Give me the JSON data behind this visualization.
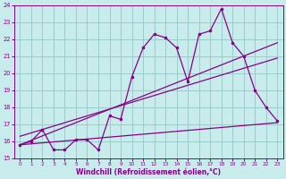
{
  "xlabel": "Windchill (Refroidissement éolien,°C)",
  "xlim": [
    -0.5,
    23.5
  ],
  "ylim": [
    15,
    24
  ],
  "yticks": [
    15,
    16,
    17,
    18,
    19,
    20,
    21,
    22,
    23,
    24
  ],
  "xticks": [
    0,
    1,
    2,
    3,
    4,
    5,
    6,
    7,
    8,
    9,
    10,
    11,
    12,
    13,
    14,
    15,
    16,
    17,
    18,
    19,
    20,
    21,
    22,
    23
  ],
  "bg_color": "#c8ecec",
  "line_color": "#880088",
  "grid_color": "#99cccc",
  "main_x": [
    0,
    1,
    2,
    3,
    4,
    5,
    6,
    7,
    8,
    9,
    10,
    11,
    12,
    13,
    14,
    15,
    16,
    17,
    18,
    19,
    20,
    21,
    22,
    23
  ],
  "main_y": [
    15.8,
    16.0,
    16.7,
    15.5,
    15.5,
    16.1,
    16.1,
    15.5,
    17.5,
    17.3,
    19.8,
    21.5,
    22.3,
    22.1,
    21.5,
    19.5,
    22.3,
    22.5,
    23.8,
    21.8,
    21.0,
    19.0,
    18.0,
    17.2
  ],
  "line1_x": [
    0,
    23
  ],
  "line1_y": [
    15.8,
    21.8
  ],
  "line2_x": [
    0,
    23
  ],
  "line2_y": [
    16.3,
    20.9
  ],
  "line3_x": [
    0,
    23
  ],
  "line3_y": [
    15.8,
    17.1
  ]
}
